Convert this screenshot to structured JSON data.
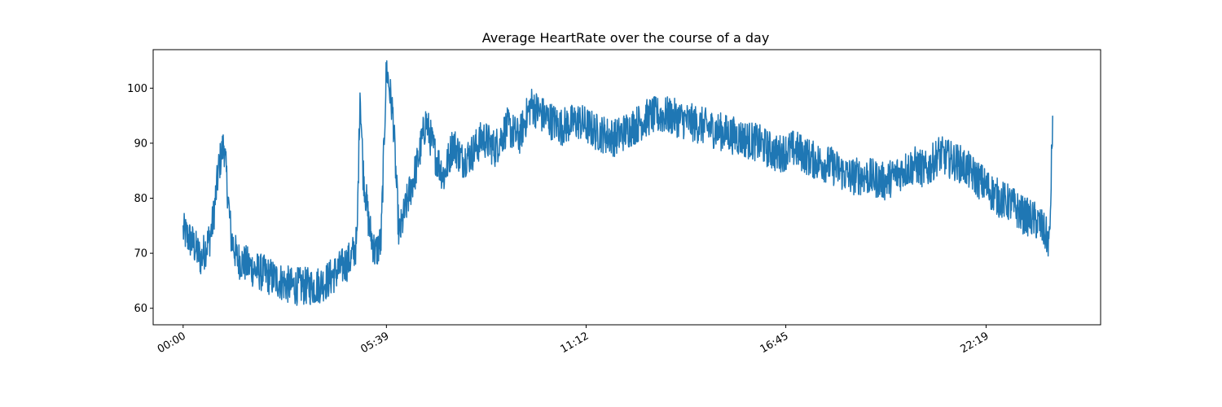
{
  "chart_data": {
    "type": "line",
    "title": "Average HeartRate over the course of a day",
    "xlabel": "",
    "ylabel": "",
    "x_unit": "time of day (HH:MM)",
    "xlim": [
      "-00:50",
      "25:30"
    ],
    "ylim": [
      57,
      107
    ],
    "x_ticks": [
      "00:00",
      "05:39",
      "11:12",
      "16:45",
      "22:19"
    ],
    "y_ticks": [
      60,
      70,
      80,
      90,
      100
    ],
    "grid": false,
    "legend": "none",
    "series": [
      {
        "name": "",
        "color": "#1f77b4",
        "x": [
          "00:00",
          "00:15",
          "00:30",
          "00:45",
          "00:50",
          "01:00",
          "01:08",
          "01:15",
          "01:20",
          "01:30",
          "01:45",
          "02:00",
          "02:20",
          "02:40",
          "03:00",
          "03:20",
          "03:40",
          "04:00",
          "04:20",
          "04:40",
          "04:50",
          "04:55",
          "05:00",
          "05:10",
          "05:20",
          "05:30",
          "05:39",
          "05:50",
          "06:00",
          "06:15",
          "06:30",
          "06:45",
          "07:00",
          "07:15",
          "07:30",
          "07:45",
          "08:00",
          "08:20",
          "08:40",
          "09:00",
          "09:20",
          "09:40",
          "10:00",
          "10:30",
          "11:00",
          "11:30",
          "12:00",
          "12:30",
          "13:00",
          "13:30",
          "14:00",
          "14:30",
          "15:00",
          "15:30",
          "16:00",
          "16:30",
          "17:00",
          "17:30",
          "18:00",
          "18:30",
          "19:00",
          "19:30",
          "20:00",
          "20:20",
          "20:40",
          "21:00",
          "21:20",
          "21:40",
          "22:00",
          "22:20",
          "22:40",
          "23:00",
          "23:20",
          "23:40",
          "23:50",
          "23:55",
          "24:00",
          "24:05",
          "24:10"
        ],
        "values": [
          74,
          72,
          69,
          73,
          76,
          86,
          90,
          80,
          73,
          69,
          68,
          67,
          66,
          65,
          64,
          64,
          64,
          65,
          67,
          69,
          72,
          100,
          85,
          75,
          70,
          72,
          104,
          95,
          73,
          80,
          86,
          94,
          88,
          84,
          90,
          87,
          88,
          91,
          89,
          93,
          91,
          97,
          95,
          93,
          94,
          92,
          91,
          93,
          95,
          95,
          94,
          93,
          92,
          91,
          90,
          88,
          89,
          87,
          86,
          84,
          84,
          83,
          85,
          86,
          85,
          88,
          87,
          86,
          84,
          82,
          80,
          79,
          77,
          76,
          75,
          74,
          73,
          72,
          95
        ]
      }
    ]
  }
}
